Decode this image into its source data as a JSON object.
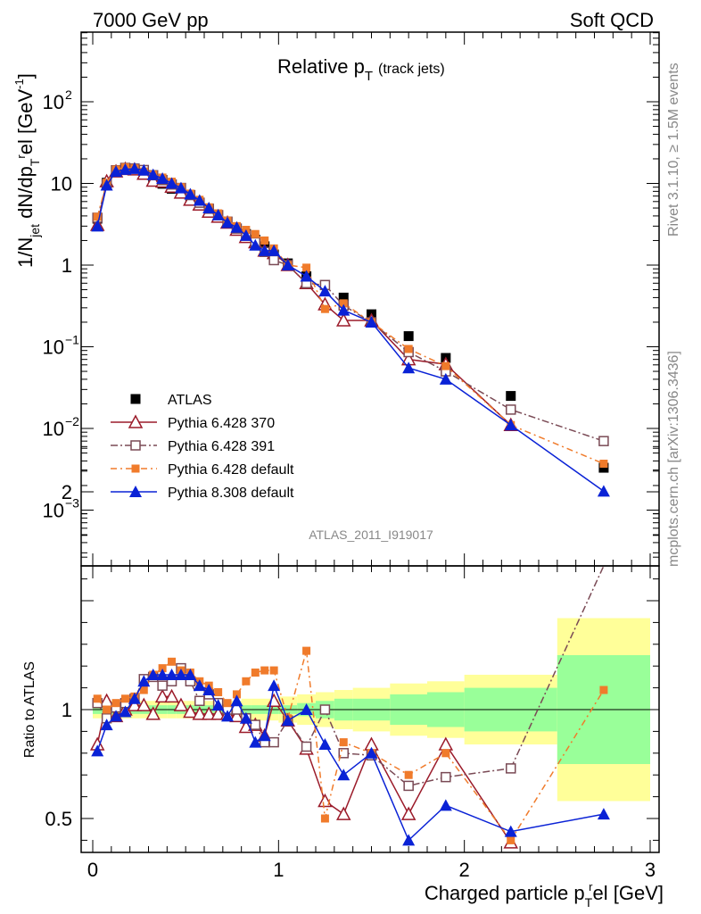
{
  "header": {
    "left": "7000 GeV pp",
    "right": "Soft QCD"
  },
  "side_labels": {
    "rivet": "Rivet 3.1.10, ≥ 1.5M events",
    "mcplots": "mcplots.cern.ch [arXiv:1306.3436]"
  },
  "watermark": "ATLAS_2011_I919017",
  "title_main": {
    "prefix": "Relative p",
    "sub": "T",
    "suffix": "(track jets)"
  },
  "ratio_ylabel": "Ratio to ATLAS",
  "colors": {
    "atlas": "#000000",
    "p370": "#9b1b2a",
    "p391": "#7a4a55",
    "p6def": "#f07b2b",
    "p8": "#0a22d6",
    "band_inner": "#99ff99",
    "band_outer": "#ffff99"
  },
  "chart_data": [
    {
      "type": "scatter",
      "panel": "main",
      "title": "Relative pT (track jets)",
      "xlabel": "Charged particle pTrel [GeV]",
      "ylabel": "1/Njet dN/dpTrel [GeV-1]",
      "yscale": "log",
      "ylim": [
        0.00025,
        900
      ],
      "xlim": [
        -0.05,
        3.0
      ],
      "x_ticks": [
        0,
        1,
        2,
        3
      ],
      "y_ticks": [
        "10^-3",
        "10^-2",
        "10^-1",
        "1",
        "10",
        "10^2"
      ],
      "legend_position": "left",
      "x": [
        0.025,
        0.075,
        0.125,
        0.175,
        0.225,
        0.275,
        0.325,
        0.375,
        0.425,
        0.475,
        0.525,
        0.575,
        0.625,
        0.675,
        0.725,
        0.775,
        0.825,
        0.875,
        0.925,
        0.975,
        1.05,
        1.15,
        1.25,
        1.35,
        1.5,
        1.7,
        1.9,
        2.25,
        2.75
      ],
      "series": [
        {
          "name": "ATLAS",
          "marker": "filled-square",
          "values": [
            3.7,
            10.2,
            14.4,
            15.0,
            14.5,
            12.8,
            11.0,
            9.9,
            8.6,
            7.6,
            6.4,
            5.6,
            4.6,
            4.0,
            3.4,
            2.8,
            2.4,
            2.05,
            1.7,
            1.35,
            1.05,
            0.73,
            0.57,
            0.4,
            0.25,
            0.135,
            0.073,
            0.025,
            0.0033
          ]
        },
        {
          "name": "Pythia 6.428 370",
          "marker": "open-triangle",
          "values": [
            3.1,
            10.6,
            14.0,
            15.0,
            14.8,
            13.1,
            10.8,
            10.5,
            9.1,
            7.7,
            6.3,
            5.5,
            4.5,
            3.9,
            3.3,
            2.7,
            2.2,
            1.9,
            1.5,
            1.4,
            1.0,
            0.6,
            0.33,
            0.21,
            0.21,
            0.07,
            0.061,
            0.011,
            null
          ]
        },
        {
          "name": "Pythia 6.428 391",
          "marker": "open-square",
          "values": [
            3.8,
            9.8,
            14.5,
            15.5,
            15.2,
            14.6,
            12.6,
            11.0,
            9.7,
            8.8,
            7.2,
            5.8,
            4.9,
            4.1,
            3.4,
            2.8,
            2.3,
            1.9,
            1.45,
            1.15,
            1.0,
            0.6,
            0.57,
            0.32,
            0.2,
            0.086,
            0.05,
            0.017,
            0.007
          ]
        },
        {
          "name": "Pythia 6.428 default",
          "marker": "filled-small-square",
          "values": [
            3.9,
            10.2,
            14.8,
            15.8,
            15.3,
            14.0,
            12.8,
            11.8,
            10.5,
            9.0,
            7.5,
            6.3,
            5.1,
            4.3,
            3.5,
            3.0,
            2.7,
            2.4,
            2.0,
            1.6,
            1.0,
            0.93,
            0.29,
            0.34,
            0.2,
            0.094,
            0.058,
            0.011,
            0.0037
          ]
        },
        {
          "name": "Pythia 8.308 default",
          "marker": "filled-triangle",
          "values": [
            3.0,
            9.5,
            14.0,
            14.8,
            15.2,
            14.5,
            12.8,
            11.5,
            10.0,
            8.8,
            7.4,
            6.2,
            5.0,
            4.1,
            3.3,
            2.9,
            2.3,
            1.75,
            1.5,
            1.5,
            1.0,
            0.73,
            0.48,
            0.28,
            0.2,
            0.055,
            0.04,
            0.011,
            0.0017
          ]
        }
      ]
    },
    {
      "type": "line",
      "panel": "ratio",
      "xlabel": "Charged particle pTrel [GeV]",
      "ylabel": "Ratio to ATLAS",
      "ylim": [
        0.35,
        2.3
      ],
      "y_ticks": [
        0.5,
        1,
        2
      ],
      "x_ticks": [
        0,
        1,
        2,
        3
      ],
      "reference_line": 1,
      "x": [
        0.025,
        0.075,
        0.125,
        0.175,
        0.225,
        0.275,
        0.325,
        0.375,
        0.425,
        0.475,
        0.525,
        0.575,
        0.625,
        0.675,
        0.725,
        0.775,
        0.825,
        0.875,
        0.925,
        0.975,
        1.05,
        1.15,
        1.25,
        1.35,
        1.5,
        1.7,
        1.9,
        2.25,
        2.75
      ],
      "series": [
        {
          "name": "Pythia 6.428 370",
          "values": [
            0.84,
            1.04,
            0.97,
            1.0,
            1.02,
            1.02,
            0.98,
            1.06,
            1.06,
            1.02,
            0.99,
            0.98,
            0.98,
            0.98,
            0.98,
            0.97,
            0.92,
            0.93,
            0.88,
            1.04,
            0.95,
            0.82,
            0.58,
            0.52,
            0.84,
            0.52,
            0.84,
            0.39,
            null
          ]
        },
        {
          "name": "Pythia 6.428 391",
          "values": [
            1.03,
            0.96,
            1.01,
            1.03,
            1.05,
            1.14,
            1.15,
            1.11,
            1.13,
            1.19,
            1.13,
            1.04,
            1.07,
            1.03,
            1.0,
            1.0,
            0.96,
            0.93,
            0.85,
            0.85,
            0.95,
            0.83,
            1.0,
            0.8,
            0.79,
            0.65,
            0.69,
            0.73,
            2.1
          ]
        },
        {
          "name": "Pythia 6.428 default",
          "values": [
            1.05,
            1.0,
            1.03,
            1.05,
            1.06,
            1.09,
            1.16,
            1.19,
            1.22,
            1.18,
            1.17,
            1.13,
            1.11,
            1.08,
            1.03,
            1.07,
            1.13,
            1.17,
            1.18,
            1.18,
            0.96,
            1.27,
            0.5,
            0.85,
            0.8,
            0.7,
            0.8,
            0.4,
            1.09
          ]
        },
        {
          "name": "Pythia 8.308 default",
          "values": [
            0.81,
            0.93,
            0.97,
            0.99,
            1.05,
            1.13,
            1.16,
            1.16,
            1.16,
            1.16,
            1.16,
            1.11,
            1.09,
            1.02,
            0.97,
            1.04,
            0.96,
            0.85,
            0.88,
            1.11,
            0.95,
            1.0,
            0.84,
            0.7,
            0.8,
            0.4,
            0.56,
            0.44,
            0.52
          ]
        }
      ],
      "bands": {
        "x_edges": [
          0.0,
          0.05,
          0.1,
          0.15,
          0.2,
          0.25,
          0.3,
          0.35,
          0.4,
          0.45,
          0.5,
          0.55,
          0.6,
          0.65,
          0.7,
          0.75,
          0.8,
          0.85,
          0.9,
          0.95,
          1.0,
          1.1,
          1.2,
          1.3,
          1.4,
          1.6,
          1.8,
          2.0,
          2.5,
          3.0
        ],
        "inner": [
          0.02,
          0.02,
          0.02,
          0.02,
          0.02,
          0.02,
          0.02,
          0.02,
          0.02,
          0.02,
          0.02,
          0.02,
          0.02,
          0.02,
          0.02,
          0.02,
          0.02,
          0.02,
          0.02,
          0.02,
          0.02,
          0.03,
          0.04,
          0.05,
          0.05,
          0.07,
          0.08,
          0.1,
          0.25
        ],
        "outer": [
          0.04,
          0.04,
          0.04,
          0.04,
          0.04,
          0.04,
          0.04,
          0.04,
          0.04,
          0.04,
          0.04,
          0.04,
          0.04,
          0.04,
          0.04,
          0.04,
          0.05,
          0.05,
          0.05,
          0.05,
          0.06,
          0.07,
          0.08,
          0.09,
          0.1,
          0.12,
          0.13,
          0.16,
          0.42
        ]
      }
    }
  ]
}
